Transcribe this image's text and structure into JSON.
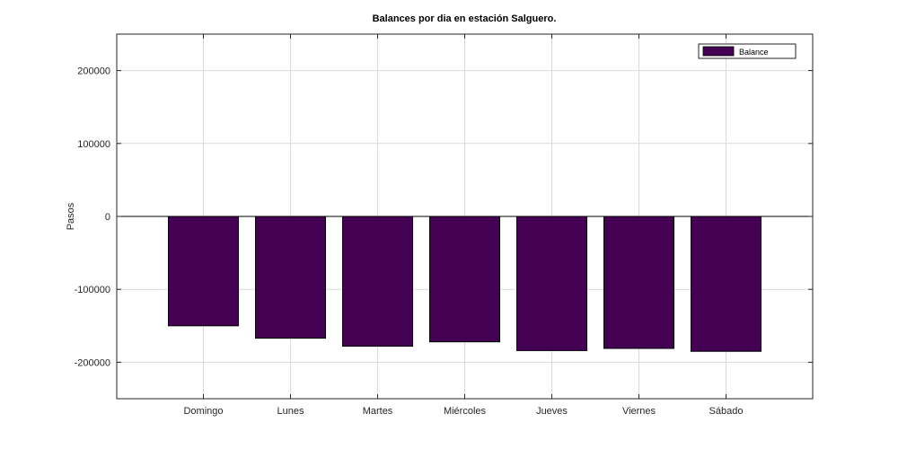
{
  "chart_data": {
    "type": "bar",
    "title": "Balances por dia en estación Salguero.",
    "xlabel": "",
    "ylabel": "Pasos",
    "categories": [
      "Domingo",
      "Lunes",
      "Martes",
      "Miércoles",
      "Jueves",
      "Viernes",
      "Sábado"
    ],
    "series": [
      {
        "name": "Balance",
        "color": "#440154",
        "values": [
          -150000,
          -167000,
          -178000,
          -172000,
          -184000,
          -181000,
          -185000
        ]
      }
    ],
    "ylim": [
      -250000,
      250000
    ],
    "yticks": [
      200000,
      100000,
      0,
      -100000,
      -200000
    ],
    "ytick_labels": [
      "200000",
      "100000",
      "0",
      "-100000",
      "-200000"
    ],
    "grid": true,
    "legend_position": "top-right"
  }
}
